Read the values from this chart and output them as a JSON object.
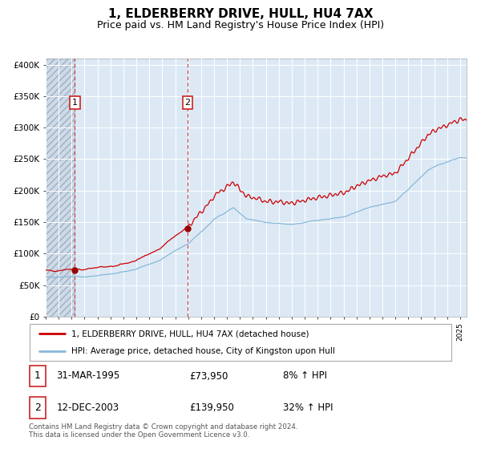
{
  "title": "1, ELDERBERRY DRIVE, HULL, HU4 7AX",
  "subtitle": "Price paid vs. HM Land Registry's House Price Index (HPI)",
  "title_fontsize": 11,
  "subtitle_fontsize": 9,
  "background_color": "#ffffff",
  "plot_bg_color": "#dce9f5",
  "hatch_color": "#c8d4e3",
  "grid_color": "#ffffff",
  "sale1_t": 1995.25,
  "sale1_price": 73950,
  "sale2_t": 2003.95,
  "sale2_price": 139950,
  "ylim": [
    0,
    410000
  ],
  "xlim": [
    1993.0,
    2025.5
  ],
  "yticks": [
    0,
    50000,
    100000,
    150000,
    200000,
    250000,
    300000,
    350000,
    400000
  ],
  "ytick_labels": [
    "£0",
    "£50K",
    "£100K",
    "£150K",
    "£200K",
    "£250K",
    "£300K",
    "£350K",
    "£400K"
  ],
  "red_line_color": "#cc0000",
  "blue_line_color": "#88b8d8",
  "sale_marker_color": "#990000",
  "vline_color": "#cc3333",
  "annot_box_color": "#cc2222",
  "legend_label1": "1, ELDERBERRY DRIVE, HULL, HU4 7AX (detached house)",
  "legend_label2": "HPI: Average price, detached house, City of Kingston upon Hull",
  "table_row1": [
    "1",
    "31-MAR-1995",
    "£73,950",
    "8% ↑ HPI"
  ],
  "table_row2": [
    "2",
    "12-DEC-2003",
    "£139,950",
    "32% ↑ HPI"
  ],
  "footer_text": "Contains HM Land Registry data © Crown copyright and database right 2024.\nThis data is licensed under the Open Government Licence v3.0."
}
